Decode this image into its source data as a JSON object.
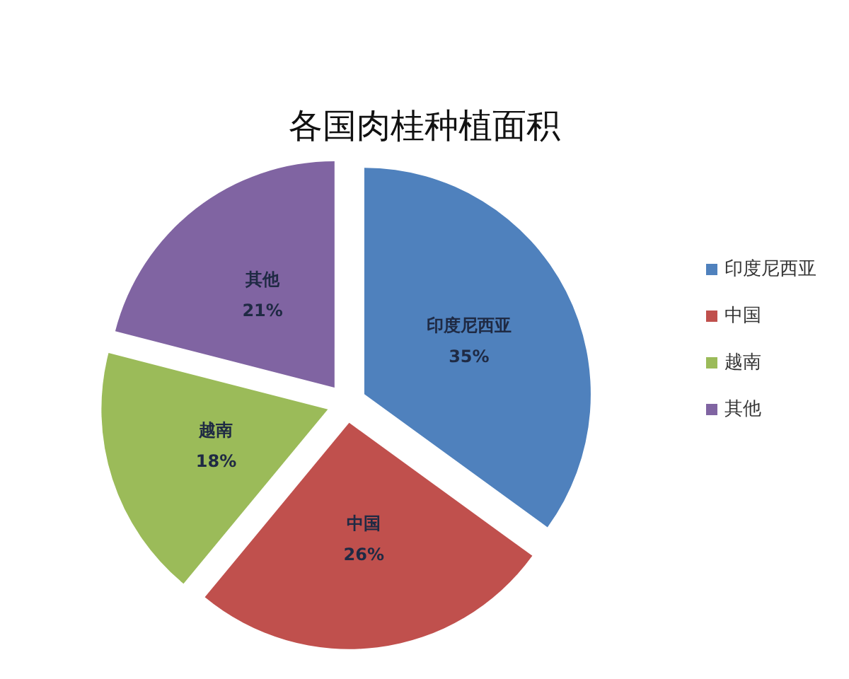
{
  "chart_data": {
    "type": "pie",
    "title": "各国肉桂种植面积",
    "categories": [
      "印度尼西亚",
      "中国",
      "越南",
      "其他"
    ],
    "values": [
      35,
      26,
      18,
      21
    ],
    "value_labels": [
      "35%",
      "26%",
      "18%",
      "21%"
    ],
    "colors": [
      "#4f81bd",
      "#c0504d",
      "#9bbb59",
      "#8064a2"
    ],
    "legend": "right"
  }
}
